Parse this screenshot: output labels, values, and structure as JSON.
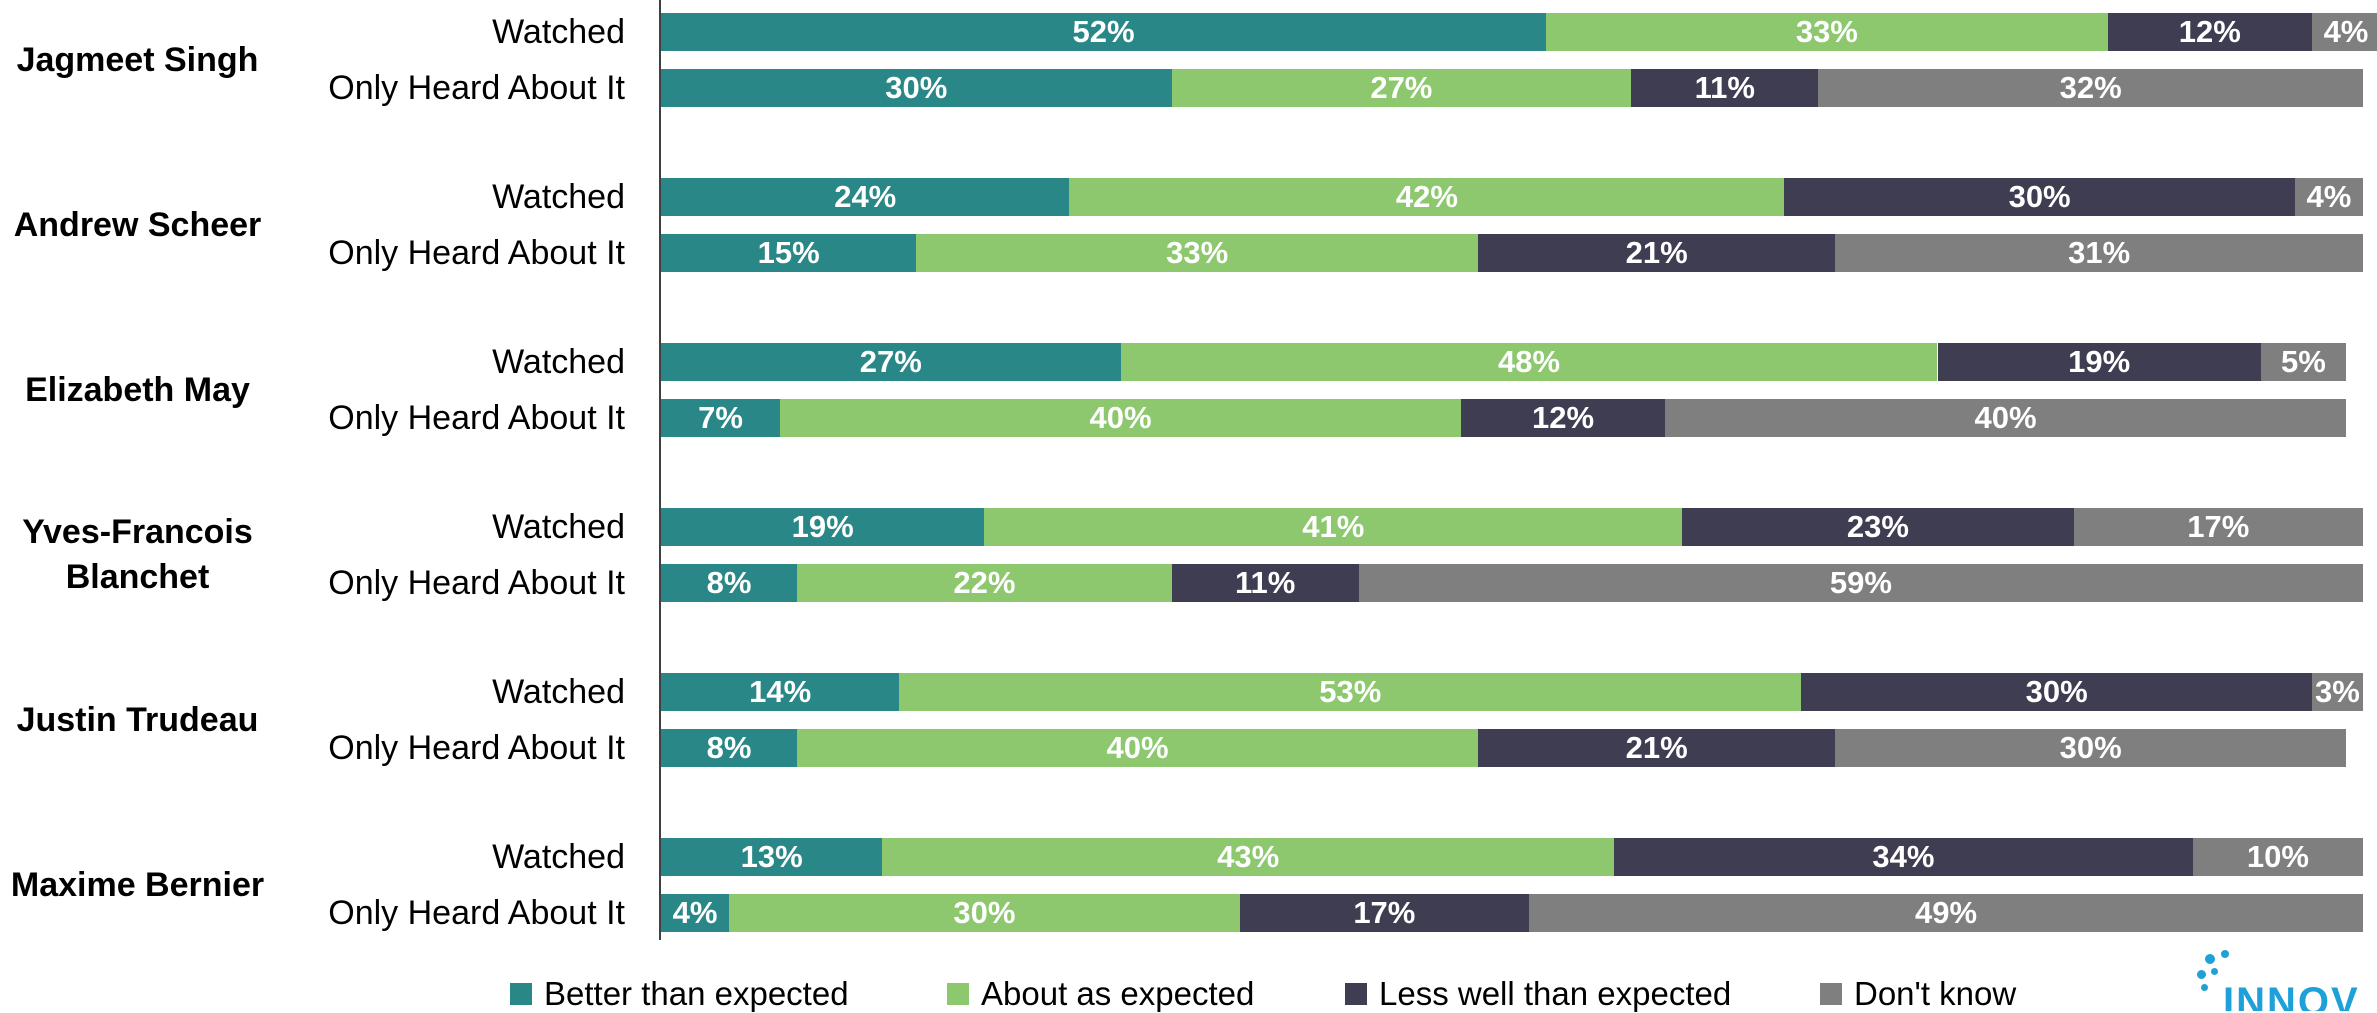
{
  "chart_data": {
    "type": "bar",
    "orientation": "horizontal-stacked-100",
    "title": "",
    "xlabel": "",
    "ylabel": "",
    "xlim": [
      0,
      100
    ],
    "legend_position": "bottom",
    "grid": false,
    "segments": [
      "Better than expected",
      "About as expected",
      "Less well than expected",
      "Don't know"
    ],
    "colors": [
      "#2a8787",
      "#8dc86f",
      "#3f3d52",
      "#7f7f7f"
    ],
    "groups": [
      {
        "candidate": "Jagmeet Singh",
        "rows": [
          {
            "label": "Watched",
            "values": [
              52,
              33,
              12,
              4
            ]
          },
          {
            "label": "Only Heard About It",
            "values": [
              30,
              27,
              11,
              32
            ]
          }
        ]
      },
      {
        "candidate": "Andrew Scheer",
        "rows": [
          {
            "label": "Watched",
            "values": [
              24,
              42,
              30,
              4
            ]
          },
          {
            "label": "Only Heard About It",
            "values": [
              15,
              33,
              21,
              31
            ]
          }
        ]
      },
      {
        "candidate": "Elizabeth May",
        "rows": [
          {
            "label": "Watched",
            "values": [
              27,
              48,
              19,
              5
            ]
          },
          {
            "label": "Only Heard About It",
            "values": [
              7,
              40,
              12,
              40
            ]
          }
        ]
      },
      {
        "candidate": "Yves-Francois Blanchet",
        "rows": [
          {
            "label": "Watched",
            "values": [
              19,
              41,
              23,
              17
            ]
          },
          {
            "label": "Only Heard About It",
            "values": [
              8,
              22,
              11,
              59
            ]
          }
        ]
      },
      {
        "candidate": "Justin Trudeau",
        "rows": [
          {
            "label": "Watched",
            "values": [
              14,
              53,
              30,
              3
            ]
          },
          {
            "label": "Only Heard About It",
            "values": [
              8,
              40,
              21,
              30
            ]
          }
        ]
      },
      {
        "candidate": "Maxime Bernier",
        "rows": [
          {
            "label": "Watched",
            "values": [
              13,
              43,
              34,
              10
            ]
          },
          {
            "label": "Only Heard About It",
            "values": [
              4,
              30,
              17,
              49
            ]
          }
        ]
      }
    ]
  },
  "logo": {
    "text": "INNOV"
  }
}
